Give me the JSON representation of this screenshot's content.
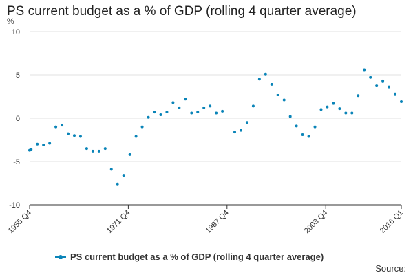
{
  "title": "PS current budget as a % of GDP (rolling 4 quarter average)",
  "unit_label": "%",
  "source_label": "Source:",
  "colors": {
    "series": "#0a84b8",
    "grid": "#e0e0e0",
    "text": "#333333"
  },
  "chart_data": {
    "type": "scatter",
    "title": "PS current budget as a % of GDP (rolling 4 quarter average)",
    "xlabel": "",
    "ylabel": "%",
    "ylim": [
      -10,
      10
    ],
    "yticks": [
      -10,
      -5,
      0,
      5,
      10
    ],
    "xlim": [
      1955.75,
      2016.0
    ],
    "xticks": [
      {
        "label": "1955 Q4",
        "value": 1955.75
      },
      {
        "label": "1971 Q4",
        "value": 1971.75
      },
      {
        "label": "1987 Q4",
        "value": 1987.75
      },
      {
        "label": "2003 Q4",
        "value": 2003.75
      },
      {
        "label": "2016 Q1",
        "value": 2016.0
      }
    ],
    "grid": true,
    "legend": "bottom",
    "series": [
      {
        "name": "PS current budget as a % of GDP (rolling 4 quarter average)",
        "points": [
          [
            1955.75,
            -3.7
          ],
          [
            1956.0,
            -3.6
          ],
          [
            1957.0,
            -3.0
          ],
          [
            1958.0,
            -3.1
          ],
          [
            1959.0,
            -2.9
          ],
          [
            1960.0,
            -1.0
          ],
          [
            1961.0,
            -0.8
          ],
          [
            1962.0,
            -1.8
          ],
          [
            1963.0,
            -2.0
          ],
          [
            1964.0,
            -2.1
          ],
          [
            1965.0,
            -3.5
          ],
          [
            1966.0,
            -3.8
          ],
          [
            1967.0,
            -3.8
          ],
          [
            1968.0,
            -3.5
          ],
          [
            1969.0,
            -5.9
          ],
          [
            1970.0,
            -7.6
          ],
          [
            1971.0,
            -6.6
          ],
          [
            1972.0,
            -4.2
          ],
          [
            1973.0,
            -2.1
          ],
          [
            1974.0,
            -1.0
          ],
          [
            1975.0,
            0.1
          ],
          [
            1976.0,
            0.7
          ],
          [
            1977.0,
            0.4
          ],
          [
            1978.0,
            0.7
          ],
          [
            1979.0,
            1.8
          ],
          [
            1980.0,
            1.2
          ],
          [
            1981.0,
            2.2
          ],
          [
            1982.0,
            0.6
          ],
          [
            1983.0,
            0.7
          ],
          [
            1984.0,
            1.2
          ],
          [
            1985.0,
            1.4
          ],
          [
            1986.0,
            0.6
          ],
          [
            1987.0,
            0.8
          ],
          [
            1989.0,
            -1.6
          ],
          [
            1990.0,
            -1.4
          ],
          [
            1991.0,
            -0.5
          ],
          [
            1992.0,
            1.4
          ],
          [
            1993.0,
            4.5
          ],
          [
            1994.0,
            5.1
          ],
          [
            1995.0,
            3.9
          ],
          [
            1996.0,
            2.7
          ],
          [
            1997.0,
            2.1
          ],
          [
            1998.0,
            0.2
          ],
          [
            1999.0,
            -0.9
          ],
          [
            2000.0,
            -1.9
          ],
          [
            2001.0,
            -2.1
          ],
          [
            2002.0,
            -1.0
          ],
          [
            2003.0,
            1.0
          ],
          [
            2004.0,
            1.3
          ],
          [
            2005.0,
            1.7
          ],
          [
            2006.0,
            1.1
          ],
          [
            2007.0,
            0.6
          ],
          [
            2008.0,
            0.6
          ],
          [
            2009.0,
            2.6
          ],
          [
            2010.0,
            5.6
          ],
          [
            2011.0,
            4.7
          ],
          [
            2012.0,
            3.8
          ],
          [
            2013.0,
            4.3
          ],
          [
            2014.0,
            3.6
          ],
          [
            2015.0,
            2.8
          ],
          [
            2016.0,
            1.9
          ]
        ]
      }
    ]
  }
}
